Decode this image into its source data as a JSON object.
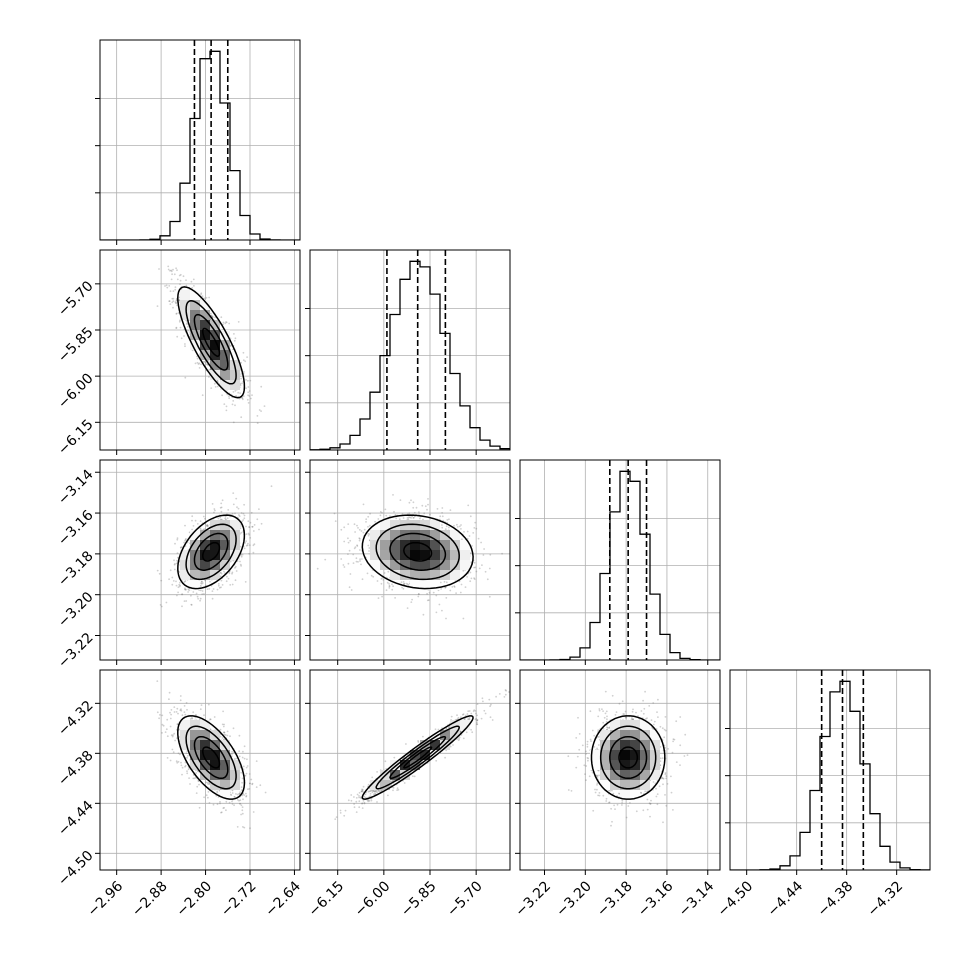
{
  "chart_data": {
    "type": "corner",
    "title": "",
    "parameters": [
      {
        "mean": -2.79,
        "sd": 0.03,
        "range": [
          -2.99,
          -2.63
        ],
        "ticks": [
          -2.96,
          -2.88,
          -2.8,
          -2.72,
          -2.64
        ],
        "tick_labels": [
          "−2.96",
          "−2.88",
          "−2.80",
          "−2.72",
          "−2.64"
        ],
        "quantiles": [
          -2.82,
          -2.79,
          -2.76
        ]
      },
      {
        "mean": -5.89,
        "sd": 0.09,
        "range": [
          -6.24,
          -5.59
        ],
        "ticks": [
          -6.15,
          -6.0,
          -5.85,
          -5.7
        ],
        "tick_labels": [
          "−6.15",
          "−6.00",
          "−5.85",
          "−5.70"
        ],
        "quantiles": [
          -5.99,
          -5.89,
          -5.8
        ]
      },
      {
        "mean": -3.179,
        "sd": 0.009,
        "range": [
          -3.232,
          -3.134
        ],
        "ticks": [
          -3.22,
          -3.2,
          -3.18,
          -3.16,
          -3.14
        ],
        "tick_labels": [
          "−3.22",
          "−3.20",
          "−3.18",
          "−3.16",
          "−3.14"
        ],
        "quantiles": [
          -3.188,
          -3.179,
          -3.17
        ]
      },
      {
        "mean": -4.385,
        "sd": 0.025,
        "range": [
          -4.52,
          -4.28
        ],
        "ticks": [
          -4.5,
          -4.44,
          -4.38,
          -4.32
        ],
        "tick_labels": [
          "−4.50",
          "−4.44",
          "−4.38",
          "−4.32"
        ],
        "quantiles": [
          -4.41,
          -4.385,
          -4.36
        ]
      }
    ],
    "correlations": {
      "1-0": -0.8,
      "2-0": 0.45,
      "2-1": -0.15,
      "3-0": -0.6,
      "3-1": 0.96,
      "3-2": 0.0
    },
    "histogram_bins": 20,
    "contour_levels_sigma": [
      0.5,
      1.0,
      1.5,
      2.0
    ],
    "grid": true
  }
}
